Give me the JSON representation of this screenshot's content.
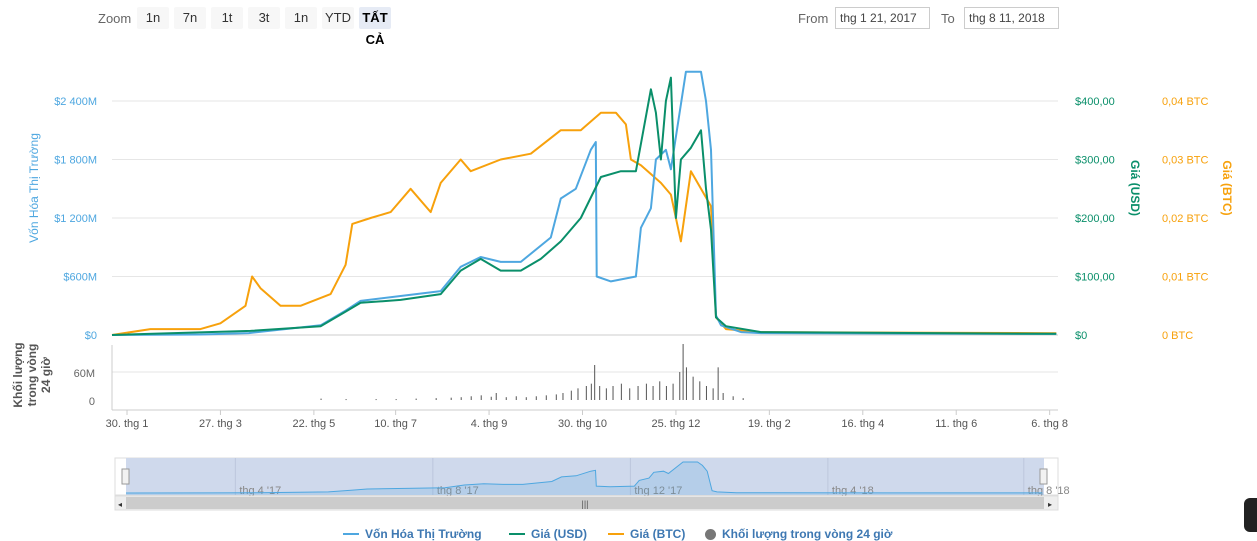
{
  "toolbar": {
    "zoom_label": "Zoom",
    "buttons": [
      "1n",
      "7n",
      "1t",
      "3t",
      "1n",
      "YTD",
      "TẤT CẢ"
    ],
    "active": "TẤT CẢ",
    "from_label": "From",
    "from_value": "thg 1 21, 2017",
    "to_label": "To",
    "to_value": "thg 8 11, 2018"
  },
  "colors": {
    "market_cap": "#4ea7e0",
    "usd": "#0a8f6a",
    "btc": "#f7a10c",
    "volume": "#555555"
  },
  "chart_data": {
    "type": "line",
    "x_unit": "days since 2017-01-21",
    "x_range": [
      0,
      567
    ],
    "x_ticks": [
      {
        "day": 9,
        "label": "30. thg 1"
      },
      {
        "day": 65,
        "label": "27. thg 3"
      },
      {
        "day": 121,
        "label": "22. thg 5"
      },
      {
        "day": 170,
        "label": "10. thg 7"
      },
      {
        "day": 226,
        "label": "4. thg 9"
      },
      {
        "day": 282,
        "label": "30. thg 10"
      },
      {
        "day": 338,
        "label": "25. thg 12"
      },
      {
        "day": 394,
        "label": "19. thg 2"
      },
      {
        "day": 450,
        "label": "16. thg 4"
      },
      {
        "day": 506,
        "label": "11. thg 6"
      },
      {
        "day": 562,
        "label": "6. thg 8"
      }
    ],
    "axes": {
      "left": {
        "title": "Vốn Hóa Thị Trường",
        "ticks": [
          "$0",
          "$600M",
          "$1 200M",
          "$1 800M",
          "$2 400M"
        ],
        "range": [
          0,
          2400
        ]
      },
      "right_usd": {
        "title": "Giá (USD)",
        "ticks": [
          "$0",
          "$100,00",
          "$200,00",
          "$300,00",
          "$400,00"
        ],
        "range": [
          0,
          400
        ]
      },
      "right_btc": {
        "title": "Giá (BTC)",
        "ticks": [
          "0 BTC",
          "0,01 BTC",
          "0,02 BTC",
          "0,03 BTC",
          "0,04 BTC"
        ],
        "range": [
          0,
          0.04
        ]
      },
      "volume": {
        "title_lines": [
          "Khối lượng",
          "trong vòng",
          "24 giờ"
        ],
        "ticks": [
          "0",
          "60M"
        ],
        "range": [
          0,
          60
        ]
      }
    },
    "series": [
      {
        "name": "Vốn Hóa Thị Trường",
        "unit": "M USD",
        "points": [
          [
            0,
            0
          ],
          [
            53,
            5
          ],
          [
            82,
            20
          ],
          [
            125,
            100
          ],
          [
            140,
            250
          ],
          [
            149,
            350
          ],
          [
            173,
            400
          ],
          [
            197,
            450
          ],
          [
            209,
            700
          ],
          [
            221,
            800
          ],
          [
            233,
            750
          ],
          [
            245,
            750
          ],
          [
            263,
            1000
          ],
          [
            269,
            1400
          ],
          [
            278,
            1500
          ],
          [
            287,
            1900
          ],
          [
            290,
            1980
          ],
          [
            290.5,
            600
          ],
          [
            299,
            550
          ],
          [
            314,
            600
          ],
          [
            317,
            1100
          ],
          [
            323,
            1300
          ],
          [
            326,
            1800
          ],
          [
            332,
            1900
          ],
          [
            335,
            1700
          ],
          [
            344,
            2700
          ],
          [
            353,
            2700
          ],
          [
            356,
            2400
          ],
          [
            359,
            1900
          ],
          [
            362,
            200
          ],
          [
            365,
            100
          ],
          [
            377,
            30
          ],
          [
            389,
            20
          ],
          [
            566,
            10
          ]
        ]
      },
      {
        "name": "Giá (USD)",
        "unit": "USD",
        "points": [
          [
            0,
            0
          ],
          [
            83,
            7
          ],
          [
            125,
            15
          ],
          [
            140,
            40
          ],
          [
            149,
            55
          ],
          [
            173,
            60
          ],
          [
            197,
            70
          ],
          [
            209,
            110
          ],
          [
            221,
            130
          ],
          [
            233,
            110
          ],
          [
            245,
            110
          ],
          [
            257,
            130
          ],
          [
            269,
            160
          ],
          [
            281,
            200
          ],
          [
            293,
            270
          ],
          [
            305,
            280
          ],
          [
            314,
            280
          ],
          [
            323,
            420
          ],
          [
            326,
            380
          ],
          [
            329,
            300
          ],
          [
            332,
            400
          ],
          [
            335,
            440
          ],
          [
            338,
            200
          ],
          [
            341,
            300
          ],
          [
            347,
            320
          ],
          [
            353,
            350
          ],
          [
            356,
            250
          ],
          [
            359,
            180
          ],
          [
            362,
            30
          ],
          [
            368,
            15
          ],
          [
            389,
            5
          ],
          [
            566,
            2
          ]
        ]
      },
      {
        "name": "Giá (BTC)",
        "unit": "BTC",
        "points": [
          [
            0,
            0
          ],
          [
            23,
            0.001
          ],
          [
            53,
            0.001
          ],
          [
            65,
            0.002
          ],
          [
            80,
            0.005
          ],
          [
            84,
            0.01
          ],
          [
            89,
            0.008
          ],
          [
            101,
            0.005
          ],
          [
            113,
            0.005
          ],
          [
            131,
            0.007
          ],
          [
            140,
            0.012
          ],
          [
            144,
            0.019
          ],
          [
            155,
            0.02
          ],
          [
            167,
            0.021
          ],
          [
            179,
            0.025
          ],
          [
            191,
            0.021
          ],
          [
            197,
            0.026
          ],
          [
            209,
            0.03
          ],
          [
            215,
            0.028
          ],
          [
            233,
            0.03
          ],
          [
            251,
            0.031
          ],
          [
            269,
            0.035
          ],
          [
            281,
            0.035
          ],
          [
            293,
            0.038
          ],
          [
            302,
            0.038
          ],
          [
            308,
            0.036
          ],
          [
            311,
            0.03
          ],
          [
            317,
            0.029
          ],
          [
            329,
            0.026
          ],
          [
            335,
            0.024
          ],
          [
            341,
            0.016
          ],
          [
            347,
            0.028
          ],
          [
            353,
            0.025
          ],
          [
            359,
            0.022
          ],
          [
            362,
            0.003
          ],
          [
            368,
            0.001
          ],
          [
            389,
            0.0005
          ],
          [
            566,
            0.0003
          ]
        ]
      },
      {
        "name": "Khối lượng trong vòng 24 giờ",
        "unit": "M USD",
        "points": [
          [
            125,
            3
          ],
          [
            140,
            2
          ],
          [
            158,
            2
          ],
          [
            170,
            2
          ],
          [
            182,
            3
          ],
          [
            194,
            4
          ],
          [
            203,
            5
          ],
          [
            209,
            6
          ],
          [
            215,
            8
          ],
          [
            221,
            10
          ],
          [
            227,
            7
          ],
          [
            230,
            15
          ],
          [
            236,
            6
          ],
          [
            242,
            8
          ],
          [
            248,
            6
          ],
          [
            254,
            8
          ],
          [
            260,
            10
          ],
          [
            266,
            12
          ],
          [
            270,
            15
          ],
          [
            275,
            20
          ],
          [
            279,
            25
          ],
          [
            284,
            30
          ],
          [
            287,
            35
          ],
          [
            289,
            75
          ],
          [
            292,
            30
          ],
          [
            296,
            25
          ],
          [
            300,
            30
          ],
          [
            305,
            35
          ],
          [
            310,
            25
          ],
          [
            315,
            30
          ],
          [
            320,
            35
          ],
          [
            324,
            30
          ],
          [
            328,
            40
          ],
          [
            332,
            30
          ],
          [
            336,
            35
          ],
          [
            340,
            60
          ],
          [
            342,
            120
          ],
          [
            344,
            70
          ],
          [
            348,
            50
          ],
          [
            352,
            40
          ],
          [
            356,
            30
          ],
          [
            360,
            25
          ],
          [
            363,
            70
          ],
          [
            366,
            15
          ],
          [
            372,
            8
          ],
          [
            378,
            4
          ]
        ]
      }
    ]
  },
  "navigator": {
    "labels": [
      "thg 4 '17",
      "thg 8 '17",
      "thg 12 '17",
      "thg 4 '18",
      "thg 8 '18"
    ],
    "label_days": [
      70,
      192,
      314,
      436,
      557
    ]
  },
  "legend": [
    "Vốn Hóa Thị Trường",
    "Giá (USD)",
    "Giá (BTC)",
    "Khối lượng trong vòng 24 giờ"
  ]
}
